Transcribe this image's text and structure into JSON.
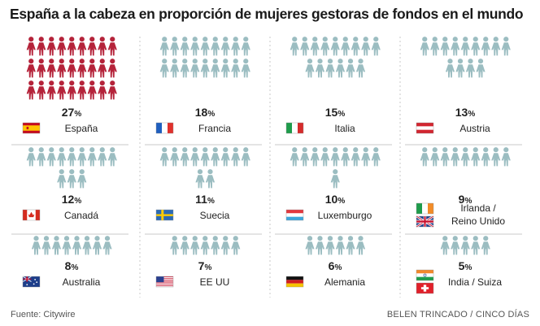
{
  "title": "España a la cabeza en proporción de mujeres gestoras de fondos en el mundo",
  "footer": {
    "source": "Fuente: Citywire",
    "credit": "BELEN TRINCADO / CINCO DÍAS"
  },
  "colors": {
    "highlight": "#b5233a",
    "normal": "#9bbdc1",
    "divider": "#c8c8c8"
  },
  "chart_data": {
    "type": "pictograph",
    "unit": "%",
    "highlight_category": "España",
    "items": [
      {
        "country": "España",
        "value": 27,
        "flags": [
          "es"
        ]
      },
      {
        "country": "Francia",
        "value": 18,
        "flags": [
          "fr"
        ]
      },
      {
        "country": "Italia",
        "value": 15,
        "flags": [
          "it"
        ]
      },
      {
        "country": "Austria",
        "value": 13,
        "flags": [
          "at"
        ]
      },
      {
        "country": "Canadá",
        "value": 12,
        "flags": [
          "ca"
        ]
      },
      {
        "country": "Suecia",
        "value": 11,
        "flags": [
          "se"
        ]
      },
      {
        "country": "Luxemburgo",
        "value": 10,
        "flags": [
          "lu"
        ]
      },
      {
        "country": "Irlanda / Reino Unido",
        "label_lines": [
          "Irlanda /",
          "Reino Unido"
        ],
        "value": 9,
        "flags": [
          "ie",
          "gb"
        ]
      },
      {
        "country": "Australia",
        "value": 8,
        "flags": [
          "au"
        ]
      },
      {
        "country": "EE UU",
        "value": 7,
        "flags": [
          "us"
        ]
      },
      {
        "country": "Alemania",
        "value": 6,
        "flags": [
          "de"
        ]
      },
      {
        "country": "India / Suiza",
        "value": 5,
        "flags": [
          "in",
          "ch"
        ]
      }
    ]
  }
}
